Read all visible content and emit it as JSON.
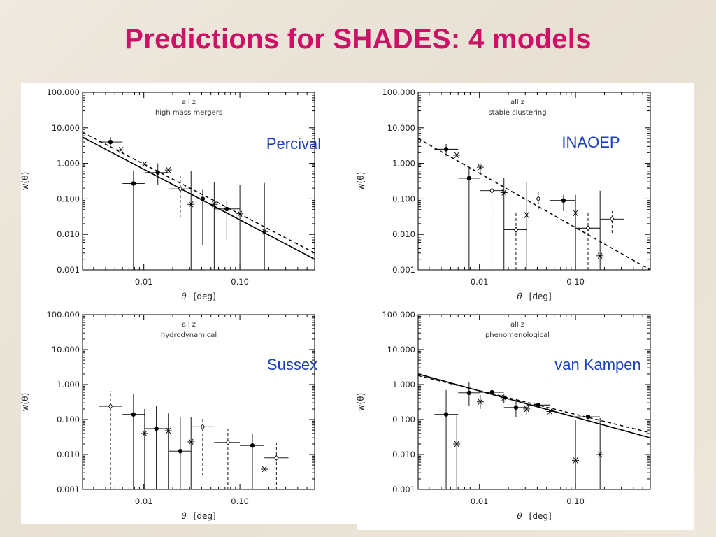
{
  "slide": {
    "title": "Predictions for SHADES: 4 models"
  },
  "colors": {
    "title": "#cc1166",
    "model_label": "#1a3fbf",
    "panel_bg": "#ffffff",
    "ink": "#000000"
  },
  "chart_data": [
    {
      "type": "scatter",
      "model_name": "Percival",
      "note_line1": "all z",
      "note_line2": "high mass mergers",
      "xlabel_symbol": "θ",
      "xlabel_unit": "[deg]",
      "ylabel": "w(θ)",
      "xscale": "log",
      "yscale": "log",
      "xlim": [
        0.0023,
        0.6
      ],
      "ylim": [
        0.001,
        100
      ],
      "xticks": [
        "0.01",
        "0.10"
      ],
      "yticks": [
        "100.000",
        "10.000",
        "1.000",
        "0.100",
        "0.010",
        "0.001"
      ],
      "series": [
        {
          "marker": "filled-circle",
          "errorbar_style": "solid",
          "points": [
            {
              "x": 0.0045,
              "y": 4.0,
              "xerr": [
                0.0034,
                0.006
              ],
              "yerr": [
                2.8,
                5.5
              ]
            },
            {
              "x": 0.0078,
              "y": 0.27,
              "xerr": [
                0.006,
                0.0102
              ],
              "yerr": [
                0.001,
                0.6
              ]
            },
            {
              "x": 0.014,
              "y": 0.55,
              "xerr": [
                0.0102,
                0.018
              ],
              "yerr": [
                0.25,
                1.0
              ]
            },
            {
              "x": 0.041,
              "y": 0.1,
              "xerr": [
                0.031,
                0.054
              ],
              "yerr": [
                0.005,
                0.18
              ]
            },
            {
              "x": 0.073,
              "y": 0.052,
              "xerr": [
                0.054,
                0.1
              ],
              "yerr": [
                0.007,
                0.09
              ]
            }
          ]
        },
        {
          "marker": "asterisk",
          "errorbar_style": "solid",
          "points": [
            {
              "x": 0.0058,
              "y": 2.4,
              "yerr": [
                null,
                null
              ]
            },
            {
              "x": 0.0102,
              "y": 0.95,
              "yerr": [
                null,
                null
              ]
            },
            {
              "x": 0.018,
              "y": 0.65,
              "yerr": [
                null,
                null
              ]
            },
            {
              "x": 0.031,
              "y": 0.07,
              "yerr": [
                0.001,
                0.6
              ]
            },
            {
              "x": 0.054,
              "y": 0.07,
              "yerr": [
                0.001,
                0.3
              ]
            },
            {
              "x": 0.1,
              "y": 0.038,
              "yerr": [
                0.001,
                0.25
              ]
            },
            {
              "x": 0.18,
              "y": 0.012,
              "yerr": [
                0.001,
                0.28
              ]
            }
          ]
        },
        {
          "marker": "open-diamond",
          "errorbar_style": "dashed",
          "points": [
            {
              "x": 0.024,
              "y": 0.19,
              "xerr": [
                0.018,
                0.031
              ],
              "yerr": [
                0.03,
                0.5
              ]
            }
          ]
        }
      ],
      "lines": [
        {
          "style": "solid",
          "from": [
            0.0023,
            5.5
          ],
          "to": [
            0.6,
            0.002
          ]
        },
        {
          "style": "dashed",
          "from": [
            0.0023,
            7.5
          ],
          "to": [
            0.6,
            0.003
          ]
        }
      ]
    },
    {
      "type": "scatter",
      "model_name": "INAOEP",
      "note_line1": "all z",
      "note_line2": "stable clustering",
      "xlabel_symbol": "θ",
      "xlabel_unit": "[deg]",
      "ylabel": "w(θ)",
      "xscale": "log",
      "yscale": "log",
      "xlim": [
        0.0023,
        0.6
      ],
      "ylim": [
        0.001,
        100
      ],
      "xticks": [
        "0.01",
        "0.10"
      ],
      "yticks": [
        "100.000",
        "10.000",
        "1.000",
        "0.100",
        "0.010",
        "0.001"
      ],
      "series": [
        {
          "marker": "filled-circle",
          "errorbar_style": "solid",
          "points": [
            {
              "x": 0.0045,
              "y": 2.5,
              "xerr": [
                0.0034,
                0.006
              ],
              "yerr": [
                1.6,
                3.5
              ]
            },
            {
              "x": 0.0078,
              "y": 0.38,
              "xerr": [
                0.006,
                0.0102
              ],
              "yerr": [
                0.001,
                0.8
              ]
            },
            {
              "x": 0.075,
              "y": 0.09,
              "xerr": [
                0.054,
                0.1
              ],
              "yerr": [
                0.045,
                0.13
              ]
            }
          ]
        },
        {
          "marker": "asterisk",
          "errorbar_style": "solid",
          "points": [
            {
              "x": 0.0058,
              "y": 1.7,
              "yerr": [
                null,
                null
              ]
            },
            {
              "x": 0.0102,
              "y": 0.78,
              "yerr": [
                0.5,
                1.0
              ]
            },
            {
              "x": 0.018,
              "y": 0.15,
              "yerr": [
                0.001,
                0.4
              ]
            },
            {
              "x": 0.031,
              "y": 0.035,
              "yerr": [
                0.001,
                0.3
              ]
            },
            {
              "x": 0.1,
              "y": 0.04,
              "yerr": [
                0.001,
                0.13
              ]
            },
            {
              "x": 0.18,
              "y": 0.0025,
              "yerr": [
                0.001,
                0.17
              ]
            }
          ]
        },
        {
          "marker": "open-diamond",
          "errorbar_style": "dashed",
          "points": [
            {
              "x": 0.0135,
              "y": 0.17,
              "xerr": [
                0.0102,
                0.018
              ],
              "yerr": [
                0.001,
                0.25
              ]
            },
            {
              "x": 0.024,
              "y": 0.0135,
              "xerr": [
                0.018,
                0.031
              ],
              "yerr": [
                0.001,
                0.04
              ]
            },
            {
              "x": 0.041,
              "y": 0.1,
              "xerr": [
                0.031,
                0.054
              ],
              "yerr": [
                0.05,
                0.17
              ]
            },
            {
              "x": 0.135,
              "y": 0.015,
              "xerr": [
                0.1,
                0.18
              ],
              "yerr": [
                0.001,
                0.045
              ]
            },
            {
              "x": 0.24,
              "y": 0.027,
              "xerr": [
                0.18,
                0.32
              ],
              "yerr": [
                0.011,
                0.045
              ]
            }
          ]
        }
      ],
      "lines": [
        {
          "style": "dashed",
          "from": [
            0.0023,
            5.0
          ],
          "to": [
            0.6,
            0.001
          ]
        }
      ]
    },
    {
      "type": "scatter",
      "model_name": "Sussex",
      "note_line1": "all z",
      "note_line2": "hydrodynamical",
      "xlabel_symbol": "θ",
      "xlabel_unit": "[deg]",
      "ylabel": "w(θ)",
      "xscale": "log",
      "yscale": "log",
      "xlim": [
        0.0023,
        0.6
      ],
      "ylim": [
        0.001,
        100
      ],
      "xticks": [
        "0.01",
        "0.10"
      ],
      "yticks": [
        "100.000",
        "10.000",
        "1.000",
        "0.100",
        "0.010",
        "0.001"
      ],
      "series": [
        {
          "marker": "filled-circle",
          "errorbar_style": "solid",
          "points": [
            {
              "x": 0.0078,
              "y": 0.14,
              "xerr": [
                0.006,
                0.0102
              ],
              "yerr": [
                0.001,
                0.55
              ]
            },
            {
              "x": 0.0135,
              "y": 0.055,
              "xerr": [
                0.0102,
                0.018
              ],
              "yerr": [
                0.001,
                0.25
              ]
            },
            {
              "x": 0.024,
              "y": 0.0125,
              "xerr": [
                0.018,
                0.031
              ],
              "yerr": [
                0.001,
                0.12
              ]
            },
            {
              "x": 0.135,
              "y": 0.018,
              "xerr": [
                0.1,
                0.18
              ],
              "yerr": [
                0.001,
                0.04
              ]
            }
          ]
        },
        {
          "marker": "asterisk",
          "errorbar_style": "solid",
          "points": [
            {
              "x": 0.0102,
              "y": 0.04,
              "yerr": [
                0.001,
                0.2
              ]
            },
            {
              "x": 0.018,
              "y": 0.048,
              "yerr": [
                0.001,
                0.15
              ]
            },
            {
              "x": 0.031,
              "y": 0.023,
              "yerr": [
                0.001,
                0.12
              ]
            },
            {
              "x": 0.18,
              "y": 0.0038,
              "yerr": [
                null,
                null
              ]
            }
          ]
        },
        {
          "marker": "open-diamond",
          "errorbar_style": "dashed",
          "points": [
            {
              "x": 0.0045,
              "y": 0.24,
              "xerr": [
                0.0034,
                0.006
              ],
              "yerr": [
                0.001,
                0.65
              ]
            },
            {
              "x": 0.041,
              "y": 0.062,
              "xerr": [
                0.031,
                0.054
              ],
              "yerr": [
                0.0025,
                0.12
              ]
            },
            {
              "x": 0.075,
              "y": 0.022,
              "xerr": [
                0.054,
                0.1
              ],
              "yerr": [
                0.001,
                0.055
              ]
            },
            {
              "x": 0.24,
              "y": 0.008,
              "xerr": [
                0.18,
                0.32
              ],
              "yerr": [
                0.001,
                0.024
              ]
            }
          ]
        }
      ],
      "lines": []
    },
    {
      "type": "scatter",
      "model_name": "van Kampen",
      "note_line1": "all z",
      "note_line2": "phenomenological",
      "xlabel_symbol": "θ",
      "xlabel_unit": "[deg]",
      "ylabel": "w(θ)",
      "xscale": "log",
      "yscale": "log",
      "xlim": [
        0.0023,
        0.6
      ],
      "ylim": [
        0.001,
        100
      ],
      "xticks": [
        "0.01",
        "0.10"
      ],
      "yticks": [
        "100.000",
        "10.000",
        "1.000",
        "0.100",
        "0.010",
        "0.001"
      ],
      "series": [
        {
          "marker": "filled-circle",
          "errorbar_style": "solid",
          "points": [
            {
              "x": 0.0045,
              "y": 0.14,
              "xerr": [
                0.0034,
                0.006
              ],
              "yerr": [
                0.001,
                0.7
              ]
            },
            {
              "x": 0.0078,
              "y": 0.58,
              "xerr": [
                0.006,
                0.0102
              ],
              "yerr": [
                0.25,
                1.2
              ]
            },
            {
              "x": 0.0135,
              "y": 0.6,
              "xerr": [
                0.0102,
                0.018
              ],
              "yerr": [
                0.35,
                0.75
              ]
            },
            {
              "x": 0.024,
              "y": 0.22,
              "xerr": [
                0.018,
                0.031
              ],
              "yerr": [
                0.12,
                0.35
              ]
            },
            {
              "x": 0.041,
              "y": 0.26,
              "xerr": [
                0.031,
                0.054
              ],
              "yerr": [
                0.23,
                0.3
              ]
            },
            {
              "x": 0.135,
              "y": 0.12,
              "xerr": [
                0.1,
                0.18
              ],
              "yerr": [
                0.11,
                0.13
              ]
            }
          ]
        },
        {
          "marker": "asterisk",
          "errorbar_style": "solid",
          "points": [
            {
              "x": 0.0058,
              "y": 0.02,
              "yerr": [
                0.001,
                0.13
              ]
            },
            {
              "x": 0.0102,
              "y": 0.32,
              "yerr": [
                0.2,
                0.5
              ]
            },
            {
              "x": 0.018,
              "y": 0.42,
              "yerr": [
                0.3,
                0.55
              ]
            },
            {
              "x": 0.031,
              "y": 0.2,
              "yerr": [
                0.14,
                0.28
              ]
            },
            {
              "x": 0.054,
              "y": 0.17,
              "yerr": [
                0.13,
                0.2
              ]
            },
            {
              "x": 0.1,
              "y": 0.0068,
              "yerr": [
                0.001,
                0.1
              ]
            },
            {
              "x": 0.18,
              "y": 0.01,
              "yerr": [
                0.001,
                0.11
              ]
            }
          ]
        }
      ],
      "lines": [
        {
          "style": "solid",
          "from": [
            0.0023,
            2.0
          ],
          "to": [
            0.6,
            0.03
          ]
        },
        {
          "style": "dashed",
          "from": [
            0.0023,
            1.8
          ],
          "to": [
            0.6,
            0.042
          ]
        }
      ]
    }
  ]
}
